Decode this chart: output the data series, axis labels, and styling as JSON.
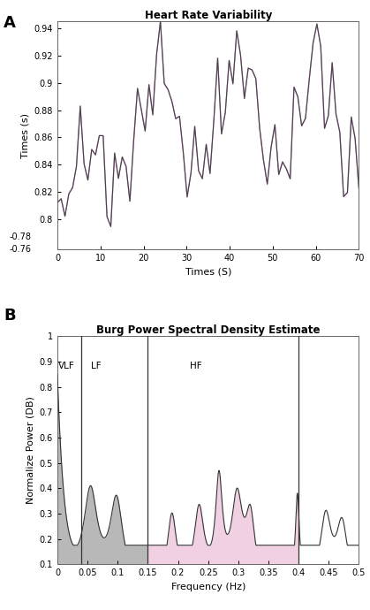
{
  "panel_a": {
    "title": "Heart Rate Variability",
    "xlabel": "Times (S)",
    "ylabel": "Times (s)",
    "xlim": [
      0,
      70
    ],
    "ylim": [
      0.775,
      0.945
    ],
    "yticks": [
      -0.78,
      -0.76,
      0.8,
      0.82,
      0.84,
      0.86,
      0.88,
      0.9,
      0.92,
      0.94
    ],
    "ytick_labels": [
      "-0.78",
      "-0.76",
      "0.8",
      "0.82",
      "0.84",
      "0.86",
      "0.88",
      "0.9",
      "0.92",
      "0.94"
    ],
    "xticks": [
      0,
      10,
      20,
      30,
      40,
      50,
      60,
      70
    ],
    "line_color": "#444444",
    "line_color2": "#cc88cc"
  },
  "panel_b": {
    "title": "Burg Power Spectral Density Estimate",
    "xlabel": "Frequency (Hz)",
    "ylabel": "Normalize Power (DB)",
    "xlim": [
      0,
      0.5
    ],
    "ylim": [
      0.1,
      1.0
    ],
    "yticks": [
      0.1,
      0.2,
      0.3,
      0.4,
      0.5,
      0.6,
      0.7,
      0.8,
      0.9,
      1.0
    ],
    "xticks": [
      0,
      0.05,
      0.1,
      0.15,
      0.2,
      0.25,
      0.3,
      0.35,
      0.4,
      0.45,
      0.5
    ],
    "vlines": [
      0.04,
      0.15,
      0.4
    ],
    "vlf_color": "#a0a0a0",
    "lf_color": "#a0a0a0",
    "hf_color": "#f0c8e0",
    "line_color": "#333333",
    "labels": {
      "VLF": [
        0.002,
        0.87
      ],
      "LF": [
        0.055,
        0.87
      ],
      "HF": [
        0.22,
        0.87
      ]
    }
  }
}
